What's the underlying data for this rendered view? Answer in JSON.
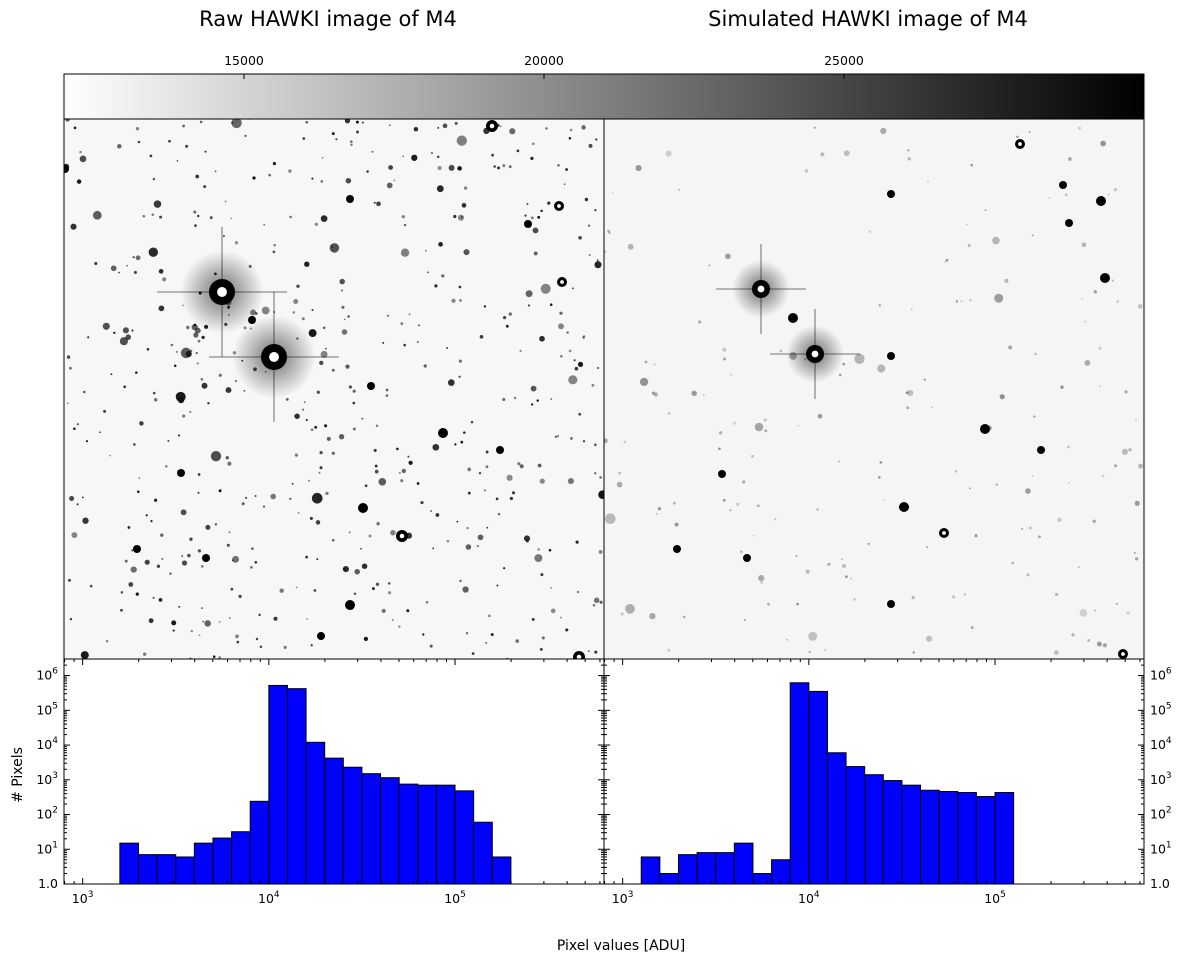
{
  "titles": {
    "left": "Raw HAWKI image of M4",
    "right": "Simulated HAWKI image of M4"
  },
  "colorbar": {
    "range": [
      12000,
      30000
    ],
    "ticks": [
      {
        "value": 15000,
        "label": "15000"
      },
      {
        "value": 20000,
        "label": "20000"
      },
      {
        "value": 25000,
        "label": "25000"
      }
    ],
    "colormap": "gray_r"
  },
  "chart_data": [
    {
      "type": "bar",
      "title": "Raw HAWKI image of M4",
      "xlabel": "Pixel values [ADU]",
      "ylabel": "# Pixels",
      "xscale": "log",
      "yscale": "log",
      "xlim_log10": [
        2.9,
        5.8
      ],
      "ylim": [
        1,
        3000000
      ],
      "bin_width_log10": 0.1,
      "bins": [
        {
          "left_log10": 2.9,
          "count": 1.0
        },
        {
          "left_log10": 3.2,
          "count": 15
        },
        {
          "left_log10": 3.3,
          "count": 7
        },
        {
          "left_log10": 3.4,
          "count": 7
        },
        {
          "left_log10": 3.5,
          "count": 6
        },
        {
          "left_log10": 3.6,
          "count": 15
        },
        {
          "left_log10": 3.7,
          "count": 21
        },
        {
          "left_log10": 3.8,
          "count": 32
        },
        {
          "left_log10": 3.9,
          "count": 240
        },
        {
          "left_log10": 4.0,
          "count": 520000
        },
        {
          "left_log10": 4.1,
          "count": 420000
        },
        {
          "left_log10": 4.2,
          "count": 12000
        },
        {
          "left_log10": 4.3,
          "count": 4200
        },
        {
          "left_log10": 4.4,
          "count": 2300
        },
        {
          "left_log10": 4.5,
          "count": 1500
        },
        {
          "left_log10": 4.6,
          "count": 1150
        },
        {
          "left_log10": 4.7,
          "count": 750
        },
        {
          "left_log10": 4.8,
          "count": 700
        },
        {
          "left_log10": 4.9,
          "count": 700
        },
        {
          "left_log10": 5.0,
          "count": 480
        },
        {
          "left_log10": 5.1,
          "count": 60
        },
        {
          "left_log10": 5.2,
          "count": 6
        }
      ]
    },
    {
      "type": "bar",
      "title": "Simulated HAWKI image of M4",
      "xlabel": "Pixel values [ADU]",
      "ylabel": "# Pixels",
      "xscale": "log",
      "yscale": "log",
      "xlim_log10": [
        2.9,
        5.8
      ],
      "ylim": [
        1,
        3000000
      ],
      "bin_width_log10": 0.1,
      "bins": [
        {
          "left_log10": 3.1,
          "count": 6
        },
        {
          "left_log10": 3.2,
          "count": 2
        },
        {
          "left_log10": 3.3,
          "count": 7
        },
        {
          "left_log10": 3.4,
          "count": 8
        },
        {
          "left_log10": 3.5,
          "count": 8
        },
        {
          "left_log10": 3.6,
          "count": 15
        },
        {
          "left_log10": 3.7,
          "count": 2
        },
        {
          "left_log10": 3.8,
          "count": 5
        },
        {
          "left_log10": 3.9,
          "count": 620000
        },
        {
          "left_log10": 4.0,
          "count": 350000
        },
        {
          "left_log10": 4.1,
          "count": 6000
        },
        {
          "left_log10": 4.2,
          "count": 2400
        },
        {
          "left_log10": 4.3,
          "count": 1400
        },
        {
          "left_log10": 4.4,
          "count": 950
        },
        {
          "left_log10": 4.5,
          "count": 700
        },
        {
          "left_log10": 4.6,
          "count": 500
        },
        {
          "left_log10": 4.7,
          "count": 460
        },
        {
          "left_log10": 4.8,
          "count": 430
        },
        {
          "left_log10": 4.9,
          "count": 330
        },
        {
          "left_log10": 5.0,
          "count": 430
        }
      ]
    }
  ],
  "axes": {
    "xtick_labels": [
      {
        "base": "10",
        "exp": "3",
        "log10": 3
      },
      {
        "base": "10",
        "exp": "4",
        "log10": 4
      },
      {
        "base": "10",
        "exp": "5",
        "log10": 5
      }
    ],
    "ytick_labels": [
      {
        "base": "1.0",
        "exp": "",
        "log10": 0
      },
      {
        "base": "10",
        "exp": "1",
        "log10": 1
      },
      {
        "base": "10",
        "exp": "2",
        "log10": 2
      },
      {
        "base": "10",
        "exp": "3",
        "log10": 3
      },
      {
        "base": "10",
        "exp": "4",
        "log10": 4
      },
      {
        "base": "10",
        "exp": "5",
        "log10": 5
      },
      {
        "base": "10",
        "exp": "6",
        "log10": 6
      }
    ],
    "xlabel": "Pixel values [ADU]",
    "ylabel": "# Pixels"
  },
  "colors": {
    "bar_fill": "#0000ff",
    "bar_edge": "#000000",
    "axes": "#000000"
  }
}
